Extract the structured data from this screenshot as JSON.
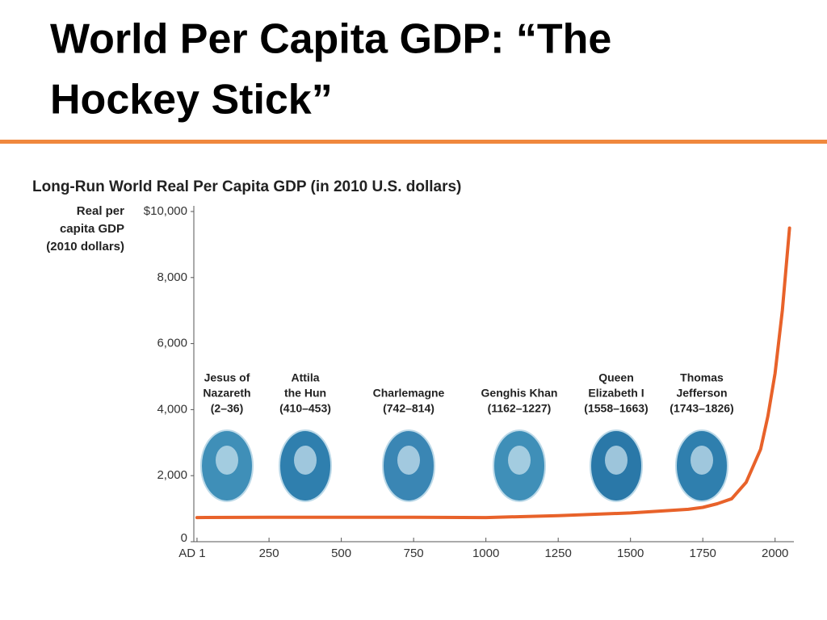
{
  "slide": {
    "title": [
      "World Per Capita GDP: “The",
      "Hockey Stick”"
    ]
  },
  "chart_data": {
    "type": "line",
    "title": "Long-Run World Real Per Capita GDP (in 2010 U.S. dollars)",
    "ylabel": [
      "Real per",
      "capita GDP",
      "(2010 dollars)"
    ],
    "x": [
      1,
      250,
      500,
      750,
      1000,
      1250,
      1500,
      1700,
      1750,
      1800,
      1850,
      1900,
      1950,
      1975,
      2000,
      2025,
      2050
    ],
    "values": [
      730,
      740,
      740,
      740,
      730,
      790,
      870,
      980,
      1040,
      1150,
      1300,
      1800,
      2800,
      3800,
      5100,
      7000,
      9500
    ],
    "color": "#e8622a",
    "xlim": [
      -10,
      2065
    ],
    "ylim": [
      0,
      10000
    ],
    "xticks": [
      {
        "value": 1,
        "label": "AD 1"
      },
      250,
      500,
      750,
      1000,
      1250,
      1500,
      1750,
      2000
    ],
    "yticks": [
      0,
      {
        "value": 2000,
        "label": "2,000"
      },
      {
        "value": 4000,
        "label": "4,000"
      },
      {
        "value": 6000,
        "label": "6,000"
      },
      {
        "value": 8000,
        "label": "8,000"
      },
      {
        "value": 10000,
        "label": "$10,000"
      }
    ],
    "annotations": [
      [
        "Jesus of",
        "Nazareth",
        "(2–36)"
      ],
      [
        "Attila",
        "the Hun",
        "(410–453)"
      ],
      [
        "Charlemagne",
        "(742–814)"
      ],
      [
        "Genghis Khan",
        "(1162–1227)"
      ],
      [
        "Queen",
        "Elizabeth I",
        "(1558–1663)"
      ],
      [
        "Thomas",
        "Jefferson",
        "(1743–1826)"
      ]
    ]
  }
}
